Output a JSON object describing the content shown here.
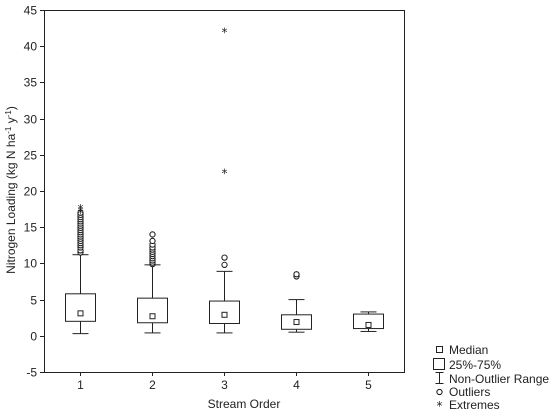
{
  "chart_data": {
    "type": "box",
    "xlabel": "Stream Order",
    "ylabel_parts": [
      "Nitrogen Loading (kg N ha",
      "-1",
      " y",
      "-1",
      ")"
    ],
    "ylim": [
      -5,
      45
    ],
    "yticks": [
      -5,
      0,
      5,
      10,
      15,
      20,
      25,
      30,
      35,
      40,
      45
    ],
    "grid": false,
    "legend_position": "bottom-right",
    "categories": [
      "1",
      "2",
      "3",
      "4",
      "5"
    ],
    "boxes": [
      {
        "category": "1",
        "median": 3.1,
        "q1": 2.0,
        "q3": 5.8,
        "whisker_low": 0.3,
        "whisker_high": 11.2,
        "outliers": [
          11.5,
          11.8,
          12.2,
          12.5,
          12.8,
          13.1,
          13.4,
          13.7,
          14.0,
          14.3,
          14.6,
          14.9,
          15.2,
          15.5,
          15.8,
          16.1,
          16.4,
          16.7,
          17.0
        ],
        "extremes": [
          17.3,
          17.6,
          17.9
        ]
      },
      {
        "category": "2",
        "median": 2.7,
        "q1": 1.8,
        "q3": 5.2,
        "whisker_low": 0.4,
        "whisker_high": 9.8,
        "outliers": [
          9.9,
          10.1,
          10.4,
          10.7,
          11.0,
          11.3,
          11.6,
          11.9,
          12.2,
          12.6,
          13.1,
          14.0
        ],
        "extremes": []
      },
      {
        "category": "3",
        "median": 2.9,
        "q1": 1.7,
        "q3": 4.8,
        "whisker_low": 0.4,
        "whisker_high": 8.9,
        "outliers": [
          9.8,
          10.8
        ],
        "extremes": [
          22.8,
          42.3
        ]
      },
      {
        "category": "4",
        "median": 1.9,
        "q1": 0.9,
        "q3": 2.9,
        "whisker_low": 0.5,
        "whisker_high": 5.0,
        "outliers": [
          8.2,
          8.5
        ],
        "extremes": []
      },
      {
        "category": "5",
        "median": 1.5,
        "q1": 1.0,
        "q3": 3.0,
        "whisker_low": 0.6,
        "whisker_high": 3.3,
        "outliers": [],
        "extremes": []
      }
    ],
    "legend": [
      {
        "key": "median",
        "label": "Median"
      },
      {
        "key": "box",
        "label": "25%-75%"
      },
      {
        "key": "range",
        "label": "Non-Outlier Range"
      },
      {
        "key": "outliers",
        "label": "Outliers"
      },
      {
        "key": "extremes",
        "label": "Extremes"
      }
    ],
    "colors": {
      "axis": "#222222",
      "box_fill": "#ffffff",
      "stroke": "#222222"
    }
  }
}
